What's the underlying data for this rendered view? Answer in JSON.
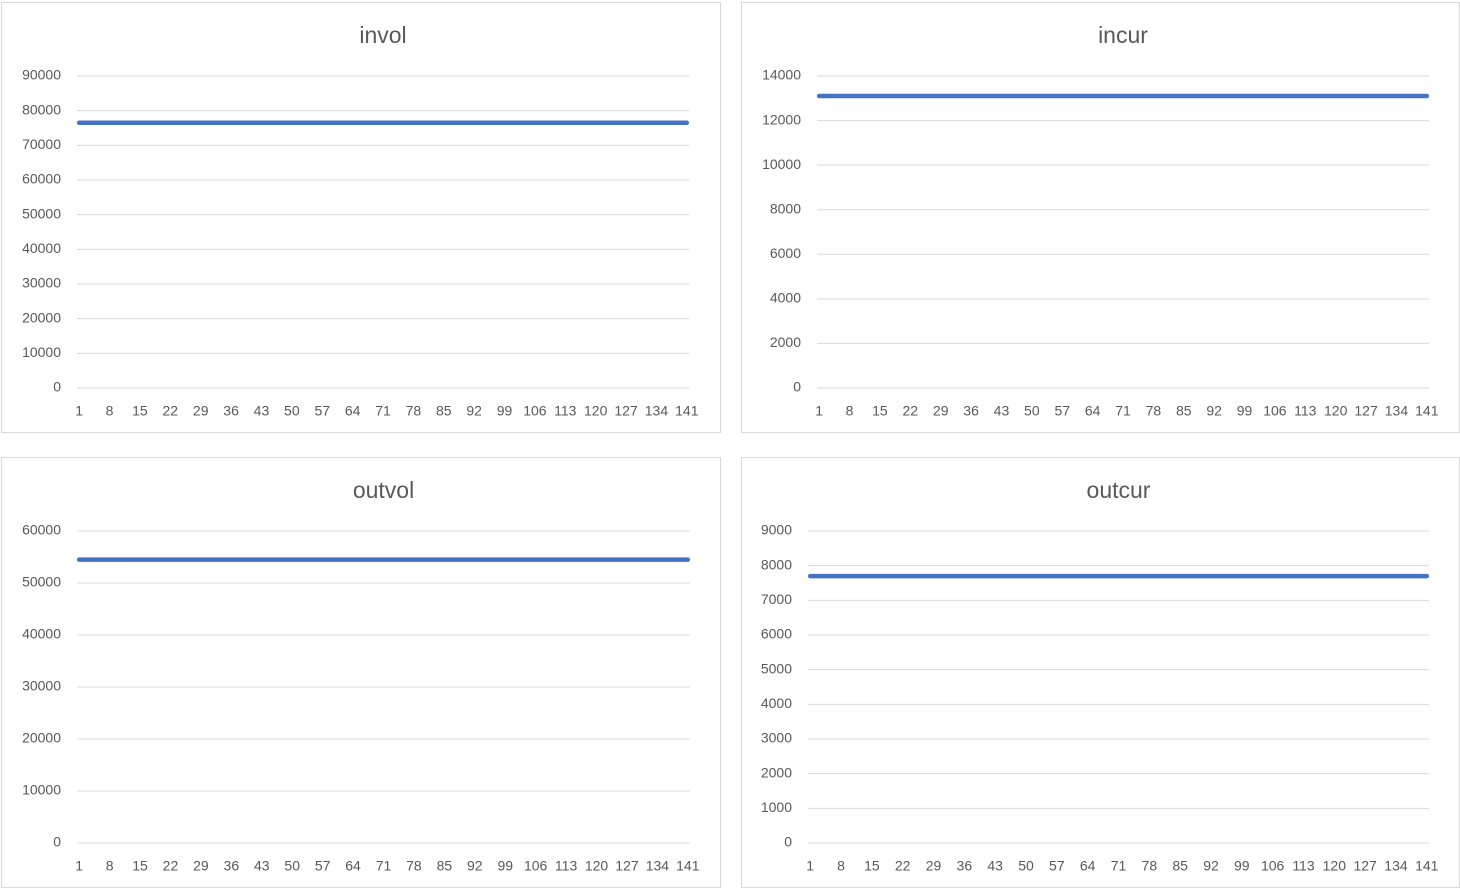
{
  "chart_data": [
    {
      "type": "line",
      "title": "invol",
      "x": [
        1,
        141
      ],
      "series": [
        {
          "name": "invol",
          "color": "#4472c4",
          "values": [
            76500,
            76500
          ]
        }
      ],
      "xlim": [
        0.5,
        141.5
      ],
      "xticks": [
        1,
        8,
        15,
        22,
        29,
        36,
        43,
        50,
        57,
        64,
        71,
        78,
        85,
        92,
        99,
        106,
        113,
        120,
        127,
        134,
        141
      ],
      "ylim": [
        0,
        90000
      ],
      "yticks": [
        0,
        10000,
        20000,
        30000,
        40000,
        50000,
        60000,
        70000,
        80000,
        90000
      ],
      "grid": true
    },
    {
      "type": "line",
      "title": "incur",
      "x": [
        1,
        141
      ],
      "series": [
        {
          "name": "incur",
          "color": "#4472c4",
          "values": [
            13100,
            13100
          ]
        }
      ],
      "xlim": [
        0.5,
        141.5
      ],
      "xticks": [
        1,
        8,
        15,
        22,
        29,
        36,
        43,
        50,
        57,
        64,
        71,
        78,
        85,
        92,
        99,
        106,
        113,
        120,
        127,
        134,
        141
      ],
      "ylim": [
        0,
        14000
      ],
      "yticks": [
        0,
        2000,
        4000,
        6000,
        8000,
        10000,
        12000,
        14000
      ],
      "grid": true
    },
    {
      "type": "line",
      "title": "outvol",
      "x": [
        1,
        141
      ],
      "series": [
        {
          "name": "outvol",
          "color": "#4472c4",
          "values": [
            54500,
            54500
          ]
        }
      ],
      "xlim": [
        0.5,
        141.5
      ],
      "xticks": [
        1,
        8,
        15,
        22,
        29,
        36,
        43,
        50,
        57,
        64,
        71,
        78,
        85,
        92,
        99,
        106,
        113,
        120,
        127,
        134,
        141
      ],
      "ylim": [
        0,
        60000
      ],
      "yticks": [
        0,
        10000,
        20000,
        30000,
        40000,
        50000,
        60000
      ],
      "grid": true
    },
    {
      "type": "line",
      "title": "outcur",
      "x": [
        1,
        141
      ],
      "series": [
        {
          "name": "outcur",
          "color": "#4472c4",
          "values": [
            7700,
            7700
          ]
        }
      ],
      "xlim": [
        0.5,
        141.5
      ],
      "xticks": [
        1,
        8,
        15,
        22,
        29,
        36,
        43,
        50,
        57,
        64,
        71,
        78,
        85,
        92,
        99,
        106,
        113,
        120,
        127,
        134,
        141
      ],
      "ylim": [
        0,
        9000
      ],
      "yticks": [
        0,
        1000,
        2000,
        3000,
        4000,
        5000,
        6000,
        7000,
        8000,
        9000
      ],
      "grid": true
    }
  ]
}
